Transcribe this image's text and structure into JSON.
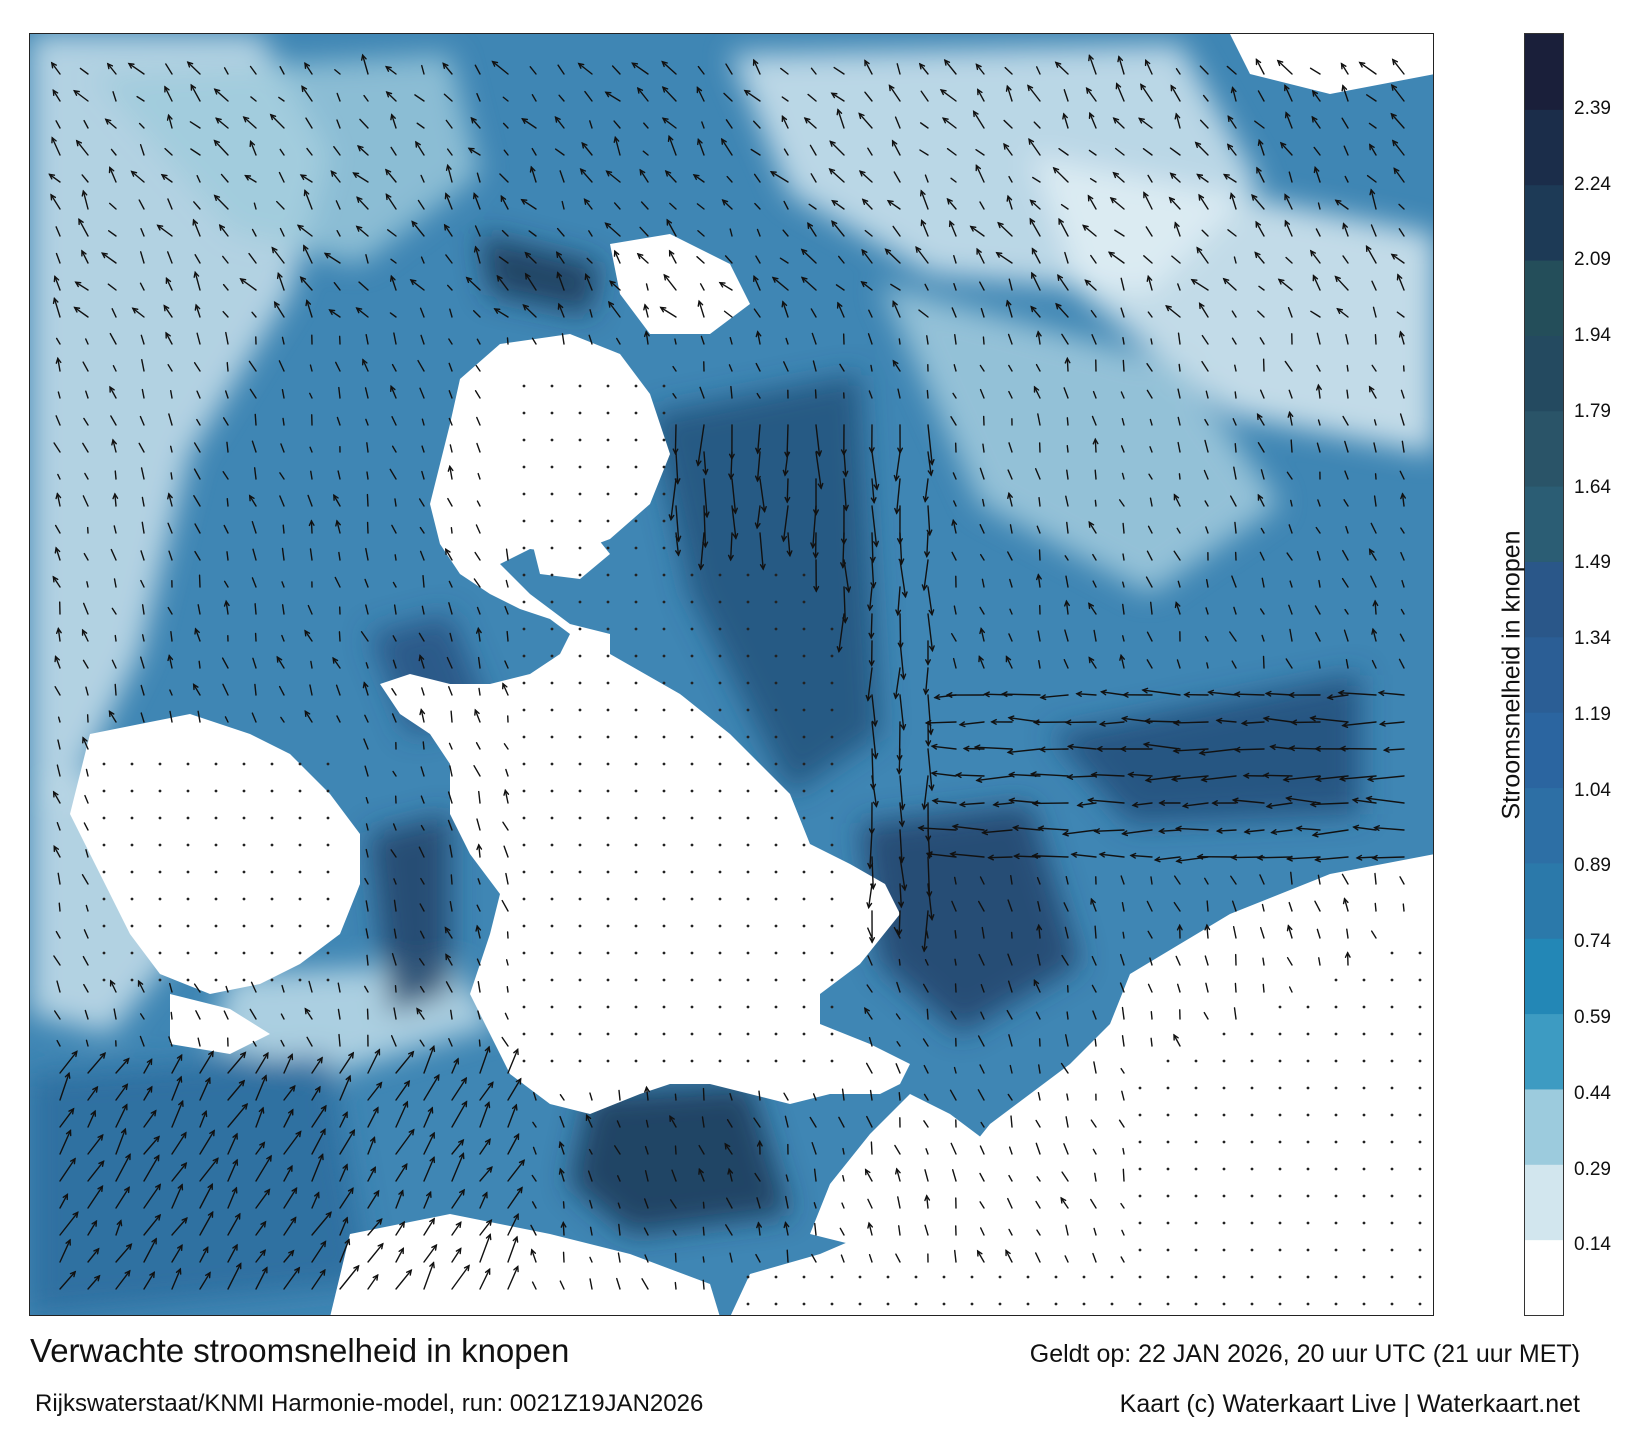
{
  "title": "Verwachte stroomsnelheid in knopen",
  "subtitle": "Rijkswaterstaat/KNMI Harmonie-model, run: 0021Z19JAN2026",
  "valid_time": "Geldt op: 22 JAN 2026, 20 uur UTC (21 uur MET)",
  "credit": "Kaart (c) Waterkaart Live | Waterkaart.net",
  "legend": {
    "title": "Stroomsnelheid in knopen",
    "min": 0,
    "max": 2.54,
    "ticks": [
      "0.14",
      "0.29",
      "0.44",
      "0.59",
      "0.74",
      "0.89",
      "1.04",
      "1.19",
      "1.34",
      "1.49",
      "1.64",
      "1.79",
      "1.94",
      "2.09",
      "2.24",
      "2.39"
    ],
    "colors": [
      "#ffffff",
      "#d2e6ee",
      "#9ccbdd",
      "#3d9bc2",
      "#2387b6",
      "#2b79aa",
      "#2d6fa5",
      "#2b65a0",
      "#2b5e95",
      "#2a5789",
      "#2b5d74",
      "#2a5468",
      "#244a60",
      "#244e5a",
      "#1d3a56",
      "#1b2d4a",
      "#1a1f3a"
    ]
  },
  "map": {
    "land_color": "#ffffff",
    "water_color": "#3f86b4",
    "arrow_color": "#111111"
  }
}
